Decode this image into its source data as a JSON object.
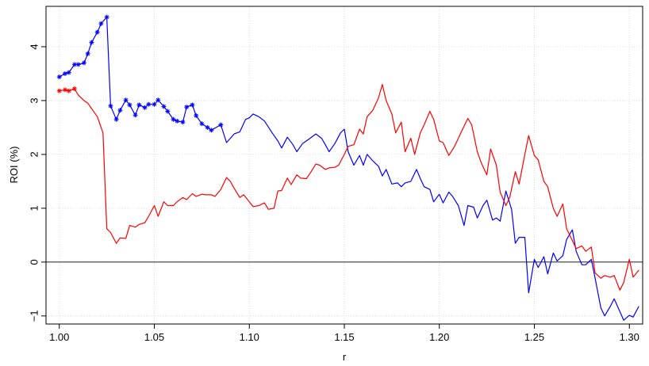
{
  "chart_data": {
    "type": "line",
    "xlabel": "r",
    "ylabel": "ROI (%)",
    "xlim": [
      0.993,
      1.307
    ],
    "ylim": [
      -1.15,
      4.75
    ],
    "x_ticks": [
      1.0,
      1.05,
      1.1,
      1.15,
      1.2,
      1.25,
      1.3
    ],
    "x_tick_labels": [
      "1.00",
      "1.05",
      "1.10",
      "1.15",
      "1.20",
      "1.25",
      "1.30"
    ],
    "y_ticks": [
      -1,
      0,
      1,
      2,
      3,
      4
    ],
    "y_tick_labels": [
      "−1",
      "0",
      "1",
      "2",
      "3",
      "4"
    ],
    "grid": true,
    "reference_line": 0,
    "series": [
      {
        "color": "#0000ff",
        "marker": "asterisk",
        "marker_max_x": 1.085,
        "points": [
          [
            1.0,
            3.44
          ],
          [
            1.003,
            3.5
          ],
          [
            1.005,
            3.52
          ],
          [
            1.008,
            3.67
          ],
          [
            1.01,
            3.67
          ],
          [
            1.013,
            3.7
          ],
          [
            1.015,
            3.87
          ],
          [
            1.017,
            4.08
          ],
          [
            1.02,
            4.27
          ],
          [
            1.022,
            4.43
          ],
          [
            1.025,
            4.55
          ],
          [
            1.027,
            2.9
          ],
          [
            1.03,
            2.65
          ],
          [
            1.032,
            2.82
          ],
          [
            1.035,
            3.01
          ],
          [
            1.037,
            2.92
          ],
          [
            1.04,
            2.73
          ],
          [
            1.042,
            2.92
          ],
          [
            1.045,
            2.87
          ],
          [
            1.047,
            2.93
          ],
          [
            1.05,
            2.93
          ],
          [
            1.052,
            3.01
          ],
          [
            1.055,
            2.89
          ],
          [
            1.057,
            2.8
          ],
          [
            1.06,
            2.65
          ],
          [
            1.062,
            2.62
          ],
          [
            1.065,
            2.6
          ],
          [
            1.067,
            2.88
          ],
          [
            1.07,
            2.92
          ],
          [
            1.072,
            2.72
          ],
          [
            1.075,
            2.57
          ],
          [
            1.078,
            2.5
          ],
          [
            1.08,
            2.45
          ],
          [
            1.085,
            2.55
          ],
          [
            1.088,
            2.22
          ],
          [
            1.092,
            2.38
          ],
          [
            1.095,
            2.42
          ],
          [
            1.098,
            2.65
          ],
          [
            1.1,
            2.68
          ],
          [
            1.102,
            2.75
          ],
          [
            1.105,
            2.7
          ],
          [
            1.108,
            2.62
          ],
          [
            1.112,
            2.4
          ],
          [
            1.115,
            2.25
          ],
          [
            1.117,
            2.12
          ],
          [
            1.12,
            2.32
          ],
          [
            1.123,
            2.18
          ],
          [
            1.125,
            2.05
          ],
          [
            1.128,
            2.2
          ],
          [
            1.132,
            2.3
          ],
          [
            1.135,
            2.38
          ],
          [
            1.138,
            2.3
          ],
          [
            1.14,
            2.18
          ],
          [
            1.142,
            2.05
          ],
          [
            1.145,
            2.2
          ],
          [
            1.148,
            2.4
          ],
          [
            1.15,
            2.47
          ],
          [
            1.152,
            2.05
          ],
          [
            1.155,
            1.8
          ],
          [
            1.158,
            1.98
          ],
          [
            1.16,
            1.8
          ],
          [
            1.162,
            2.0
          ],
          [
            1.165,
            1.88
          ],
          [
            1.168,
            1.78
          ],
          [
            1.17,
            1.6
          ],
          [
            1.172,
            1.72
          ],
          [
            1.175,
            1.45
          ],
          [
            1.178,
            1.47
          ],
          [
            1.18,
            1.4
          ],
          [
            1.182,
            1.47
          ],
          [
            1.185,
            1.5
          ],
          [
            1.188,
            1.72
          ],
          [
            1.19,
            1.55
          ],
          [
            1.192,
            1.4
          ],
          [
            1.195,
            1.35
          ],
          [
            1.197,
            1.12
          ],
          [
            1.2,
            1.26
          ],
          [
            1.202,
            1.1
          ],
          [
            1.205,
            1.3
          ],
          [
            1.207,
            1.22
          ],
          [
            1.21,
            1.05
          ],
          [
            1.213,
            0.68
          ],
          [
            1.215,
            1.05
          ],
          [
            1.218,
            1.02
          ],
          [
            1.22,
            0.82
          ],
          [
            1.223,
            1.05
          ],
          [
            1.225,
            1.15
          ],
          [
            1.228,
            0.78
          ],
          [
            1.23,
            0.82
          ],
          [
            1.232,
            0.76
          ],
          [
            1.235,
            1.32
          ],
          [
            1.238,
            0.98
          ],
          [
            1.24,
            0.35
          ],
          [
            1.242,
            0.46
          ],
          [
            1.245,
            0.46
          ],
          [
            1.247,
            -0.57
          ],
          [
            1.25,
            0.05
          ],
          [
            1.252,
            -0.1
          ],
          [
            1.255,
            0.1
          ],
          [
            1.257,
            -0.22
          ],
          [
            1.26,
            0.17
          ],
          [
            1.262,
            0.02
          ],
          [
            1.265,
            0.12
          ],
          [
            1.267,
            0.42
          ],
          [
            1.27,
            0.6
          ],
          [
            1.272,
            0.2
          ],
          [
            1.275,
            -0.05
          ],
          [
            1.277,
            -0.05
          ],
          [
            1.28,
            0.05
          ],
          [
            1.282,
            -0.3
          ],
          [
            1.285,
            -0.85
          ],
          [
            1.287,
            -1.0
          ],
          [
            1.29,
            -0.82
          ],
          [
            1.292,
            -0.68
          ],
          [
            1.295,
            -0.92
          ],
          [
            1.297,
            -1.08
          ],
          [
            1.3,
            -0.99
          ],
          [
            1.302,
            -1.02
          ],
          [
            1.305,
            -0.82
          ]
        ]
      },
      {
        "color": "#ff0000",
        "marker": "asterisk",
        "marker_max_x": 1.008,
        "points": [
          [
            1.0,
            3.18
          ],
          [
            1.003,
            3.2
          ],
          [
            1.005,
            3.18
          ],
          [
            1.008,
            3.22
          ],
          [
            1.01,
            3.1
          ],
          [
            1.013,
            3.0
          ],
          [
            1.015,
            2.95
          ],
          [
            1.017,
            2.85
          ],
          [
            1.02,
            2.7
          ],
          [
            1.023,
            2.4
          ],
          [
            1.025,
            0.62
          ],
          [
            1.027,
            0.55
          ],
          [
            1.03,
            0.35
          ],
          [
            1.032,
            0.45
          ],
          [
            1.035,
            0.44
          ],
          [
            1.037,
            0.68
          ],
          [
            1.04,
            0.65
          ],
          [
            1.042,
            0.7
          ],
          [
            1.045,
            0.73
          ],
          [
            1.047,
            0.85
          ],
          [
            1.05,
            1.05
          ],
          [
            1.052,
            0.85
          ],
          [
            1.055,
            1.12
          ],
          [
            1.057,
            1.05
          ],
          [
            1.06,
            1.05
          ],
          [
            1.062,
            1.12
          ],
          [
            1.065,
            1.2
          ],
          [
            1.067,
            1.16
          ],
          [
            1.07,
            1.27
          ],
          [
            1.072,
            1.22
          ],
          [
            1.075,
            1.26
          ],
          [
            1.077,
            1.25
          ],
          [
            1.08,
            1.25
          ],
          [
            1.082,
            1.22
          ],
          [
            1.085,
            1.35
          ],
          [
            1.088,
            1.57
          ],
          [
            1.09,
            1.5
          ],
          [
            1.092,
            1.37
          ],
          [
            1.095,
            1.2
          ],
          [
            1.097,
            1.25
          ],
          [
            1.1,
            1.12
          ],
          [
            1.102,
            1.03
          ],
          [
            1.105,
            1.05
          ],
          [
            1.108,
            1.1
          ],
          [
            1.11,
            0.98
          ],
          [
            1.113,
            1.0
          ],
          [
            1.115,
            1.32
          ],
          [
            1.117,
            1.33
          ],
          [
            1.12,
            1.56
          ],
          [
            1.122,
            1.44
          ],
          [
            1.125,
            1.62
          ],
          [
            1.127,
            1.56
          ],
          [
            1.13,
            1.55
          ],
          [
            1.132,
            1.65
          ],
          [
            1.135,
            1.82
          ],
          [
            1.137,
            1.8
          ],
          [
            1.14,
            1.72
          ],
          [
            1.142,
            1.75
          ],
          [
            1.145,
            1.76
          ],
          [
            1.147,
            1.8
          ],
          [
            1.15,
            2.0
          ],
          [
            1.152,
            2.15
          ],
          [
            1.155,
            2.18
          ],
          [
            1.158,
            2.47
          ],
          [
            1.16,
            2.38
          ],
          [
            1.162,
            2.7
          ],
          [
            1.165,
            2.82
          ],
          [
            1.168,
            3.05
          ],
          [
            1.17,
            3.3
          ],
          [
            1.172,
            3.0
          ],
          [
            1.175,
            2.75
          ],
          [
            1.177,
            2.4
          ],
          [
            1.18,
            2.6
          ],
          [
            1.182,
            2.05
          ],
          [
            1.185,
            2.3
          ],
          [
            1.187,
            2.0
          ],
          [
            1.19,
            2.4
          ],
          [
            1.192,
            2.55
          ],
          [
            1.195,
            2.8
          ],
          [
            1.197,
            2.65
          ],
          [
            1.2,
            2.25
          ],
          [
            1.202,
            2.22
          ],
          [
            1.205,
            1.98
          ],
          [
            1.208,
            2.15
          ],
          [
            1.21,
            2.3
          ],
          [
            1.212,
            2.45
          ],
          [
            1.215,
            2.67
          ],
          [
            1.217,
            2.55
          ],
          [
            1.22,
            2.05
          ],
          [
            1.222,
            1.85
          ],
          [
            1.225,
            1.62
          ],
          [
            1.227,
            2.1
          ],
          [
            1.23,
            1.8
          ],
          [
            1.232,
            1.3
          ],
          [
            1.235,
            1.05
          ],
          [
            1.237,
            1.2
          ],
          [
            1.24,
            1.68
          ],
          [
            1.242,
            1.45
          ],
          [
            1.245,
            2.0
          ],
          [
            1.247,
            2.35
          ],
          [
            1.25,
            1.98
          ],
          [
            1.252,
            1.9
          ],
          [
            1.255,
            1.5
          ],
          [
            1.257,
            1.4
          ],
          [
            1.26,
            1.0
          ],
          [
            1.262,
            0.85
          ],
          [
            1.265,
            1.08
          ],
          [
            1.267,
            0.62
          ],
          [
            1.27,
            0.4
          ],
          [
            1.272,
            0.25
          ],
          [
            1.275,
            0.3
          ],
          [
            1.277,
            0.2
          ],
          [
            1.28,
            0.28
          ],
          [
            1.282,
            -0.2
          ],
          [
            1.285,
            -0.3
          ],
          [
            1.287,
            -0.25
          ],
          [
            1.29,
            -0.28
          ],
          [
            1.292,
            -0.25
          ],
          [
            1.295,
            -0.52
          ],
          [
            1.297,
            -0.38
          ],
          [
            1.3,
            0.05
          ],
          [
            1.302,
            -0.28
          ],
          [
            1.305,
            -0.15
          ]
        ]
      }
    ]
  }
}
